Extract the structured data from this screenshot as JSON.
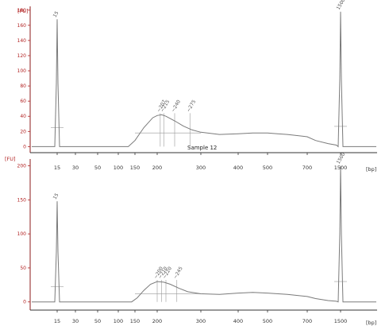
{
  "figure": {
    "caption": "Sample 12"
  },
  "chart_data": [
    {
      "type": "line",
      "y_unit": "[FU]",
      "x_unit": "[bp]",
      "x_ticks": [
        "15",
        "30",
        "50",
        "100",
        "150",
        "200",
        "300",
        "400",
        "500",
        "700",
        "1500"
      ],
      "y_ticks": [
        0,
        20,
        40,
        60,
        80,
        100,
        120,
        140,
        160,
        180
      ],
      "ylim": [
        -8,
        185
      ],
      "marker_peaks": [
        {
          "label": "15",
          "x": "15",
          "height": 168
        },
        {
          "label": "1500",
          "x": "1500",
          "height": 178
        }
      ],
      "sample_peaks": [
        {
          "label": "~207",
          "x_approx_bp": 207
        },
        {
          "label": "~215",
          "x_approx_bp": 215
        },
        {
          "label": "~240",
          "x_approx_bp": 240
        },
        {
          "label": "~275",
          "x_approx_bp": 275
        }
      ],
      "trace": {
        "baseline": 0,
        "broad_peak_max": 42,
        "plateau_level": 18,
        "x_samples": [
          130,
          150,
          170,
          190,
          200,
          210,
          220,
          240,
          260,
          280,
          300,
          350,
          400,
          450,
          500,
          550,
          600,
          700,
          900,
          1200,
          1400
        ],
        "y_samples": [
          0,
          8,
          25,
          38,
          41,
          42,
          40,
          34,
          27,
          22,
          19,
          16,
          17,
          18,
          18,
          17,
          16,
          13,
          8,
          4,
          2
        ]
      },
      "grid": false,
      "legend": "none"
    },
    {
      "type": "line",
      "y_unit": "[FU]",
      "x_unit": "[bp]",
      "x_ticks": [
        "15",
        "30",
        "50",
        "100",
        "150",
        "200",
        "300",
        "400",
        "500",
        "700",
        "1500"
      ],
      "y_ticks": [
        0,
        50,
        100,
        150,
        200
      ],
      "ylim": [
        -12,
        210
      ],
      "marker_peaks": [
        {
          "label": "15",
          "x": "15",
          "height": 148
        },
        {
          "label": "1500",
          "x": "1500",
          "height": 200
        }
      ],
      "sample_peaks": [
        {
          "label": "~200",
          "x_approx_bp": 200
        },
        {
          "label": "~210",
          "x_approx_bp": 210
        },
        {
          "label": "~220",
          "x_approx_bp": 220
        },
        {
          "label": "~245",
          "x_approx_bp": 245
        }
      ],
      "trace": {
        "baseline": 0,
        "broad_peak_max": 30,
        "plateau_level": 12,
        "x_samples": [
          140,
          155,
          170,
          185,
          200,
          215,
          230,
          250,
          270,
          300,
          350,
          400,
          450,
          500,
          600,
          700,
          900,
          1200,
          1400
        ],
        "y_samples": [
          0,
          6,
          17,
          26,
          30,
          29,
          26,
          20,
          15,
          12,
          11,
          13,
          14,
          13,
          11,
          8,
          5,
          2,
          1
        ]
      },
      "grid": false,
      "legend": "none"
    }
  ]
}
